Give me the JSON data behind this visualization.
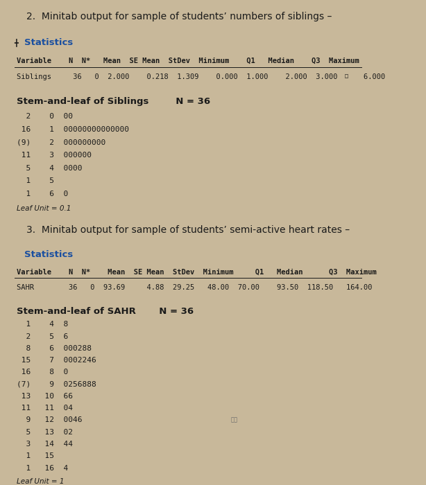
{
  "bg_color": "#c8b89a",
  "text_color": "#1a1a1a",
  "title2": "2.  Minitab output for sample of students’ numbers of siblings –",
  "title3": "3.  Minitab output for sample of students’ semi-active heart rates –",
  "sib_stem": [
    "  2    0  00",
    " 16    1  00000000000000",
    "(9)    2  000000000",
    " 11    3  000000",
    "  5    4  0000",
    "  1    5",
    "  1    6  0"
  ],
  "sib_leaf_unit": "Leaf Unit = 0.1",
  "sahr_stem": [
    "  1    4  8",
    "  2    5  6",
    "  8    6  000288",
    " 15    7  0002246",
    " 16    8  0",
    "(7)    9  0256888",
    " 13   10  66",
    " 11   11  04",
    "  9   12  0046",
    "  5   13  02",
    "  3   14  44",
    "  1   15",
    "  1   16  4"
  ],
  "sahr_leaf_unit": "Leaf Unit = 1"
}
